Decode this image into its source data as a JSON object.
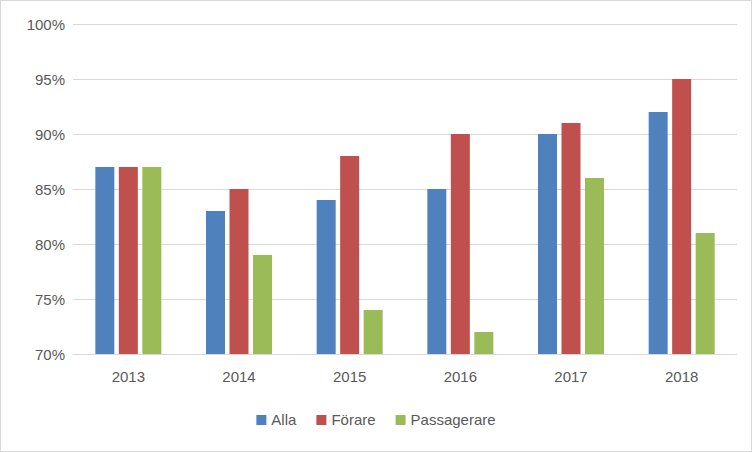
{
  "chart_data": {
    "type": "bar",
    "categories": [
      "2013",
      "2014",
      "2015",
      "2016",
      "2017",
      "2018"
    ],
    "series": [
      {
        "name": "Alla",
        "color": "#4f81bd",
        "values": [
          87,
          83,
          84,
          85,
          90,
          92
        ]
      },
      {
        "name": "Förare",
        "color": "#c0504d",
        "values": [
          87,
          85,
          88,
          90,
          91,
          95
        ]
      },
      {
        "name": "Passagerare",
        "color": "#9bbb59",
        "values": [
          87,
          79,
          74,
          72,
          86,
          81
        ]
      }
    ],
    "ylim": [
      70,
      100
    ],
    "yticks": [
      {
        "value": 70,
        "label": "70%"
      },
      {
        "value": 75,
        "label": "75%"
      },
      {
        "value": 80,
        "label": "80%"
      },
      {
        "value": 85,
        "label": "85%"
      },
      {
        "value": 90,
        "label": "90%"
      },
      {
        "value": 95,
        "label": "95%"
      },
      {
        "value": 100,
        "label": "100%"
      }
    ],
    "grid": true,
    "legend": "bottom"
  }
}
